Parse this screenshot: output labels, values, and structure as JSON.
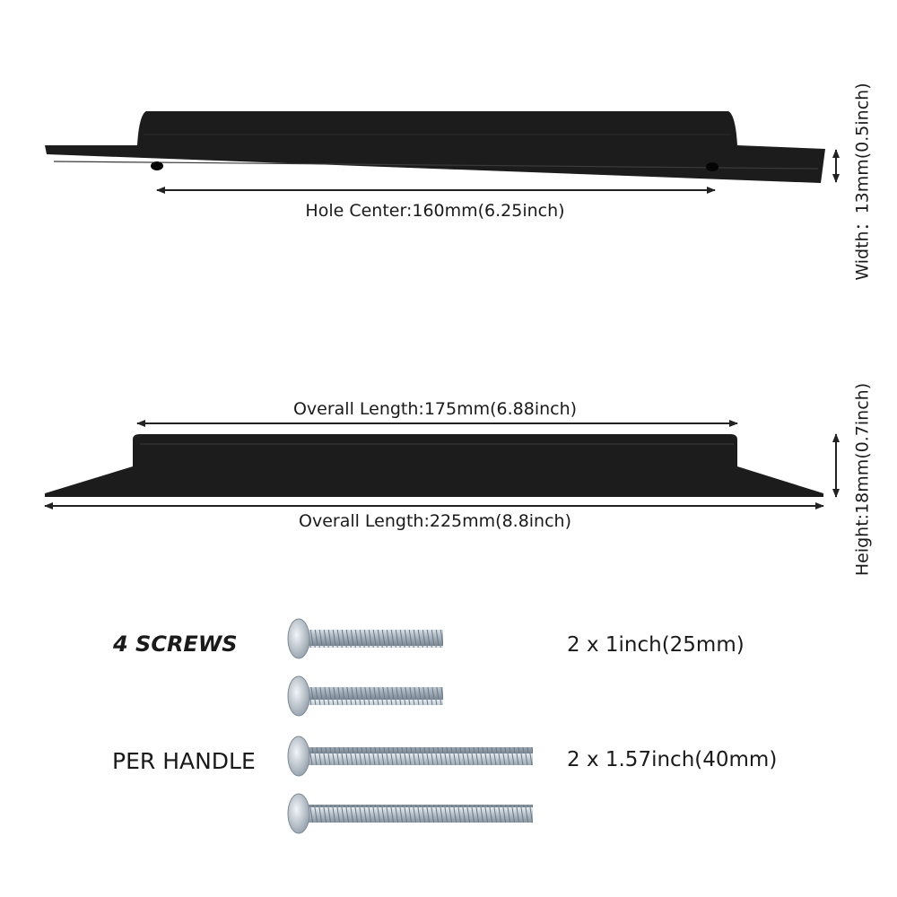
{
  "top_view": {
    "hole_center_label": "Hole Center:160mm(6.25inch)",
    "width_label": "Width：13mm(0.5inch)"
  },
  "side_view": {
    "inner_length_label": "Overall Length:175mm(6.88inch)",
    "outer_length_label": "Overall Length:225mm(8.8inch)",
    "height_label": "Height:18mm(0.7inch)"
  },
  "screws": {
    "title": "4 SCREWS",
    "subtitle": "PER HANDLE",
    "short_spec": "2 x 1inch(25mm)",
    "long_spec": "2 x 1.57inch(40mm)"
  },
  "colors": {
    "handle": "#1c1c1c",
    "screw": "#b9c3cc"
  }
}
